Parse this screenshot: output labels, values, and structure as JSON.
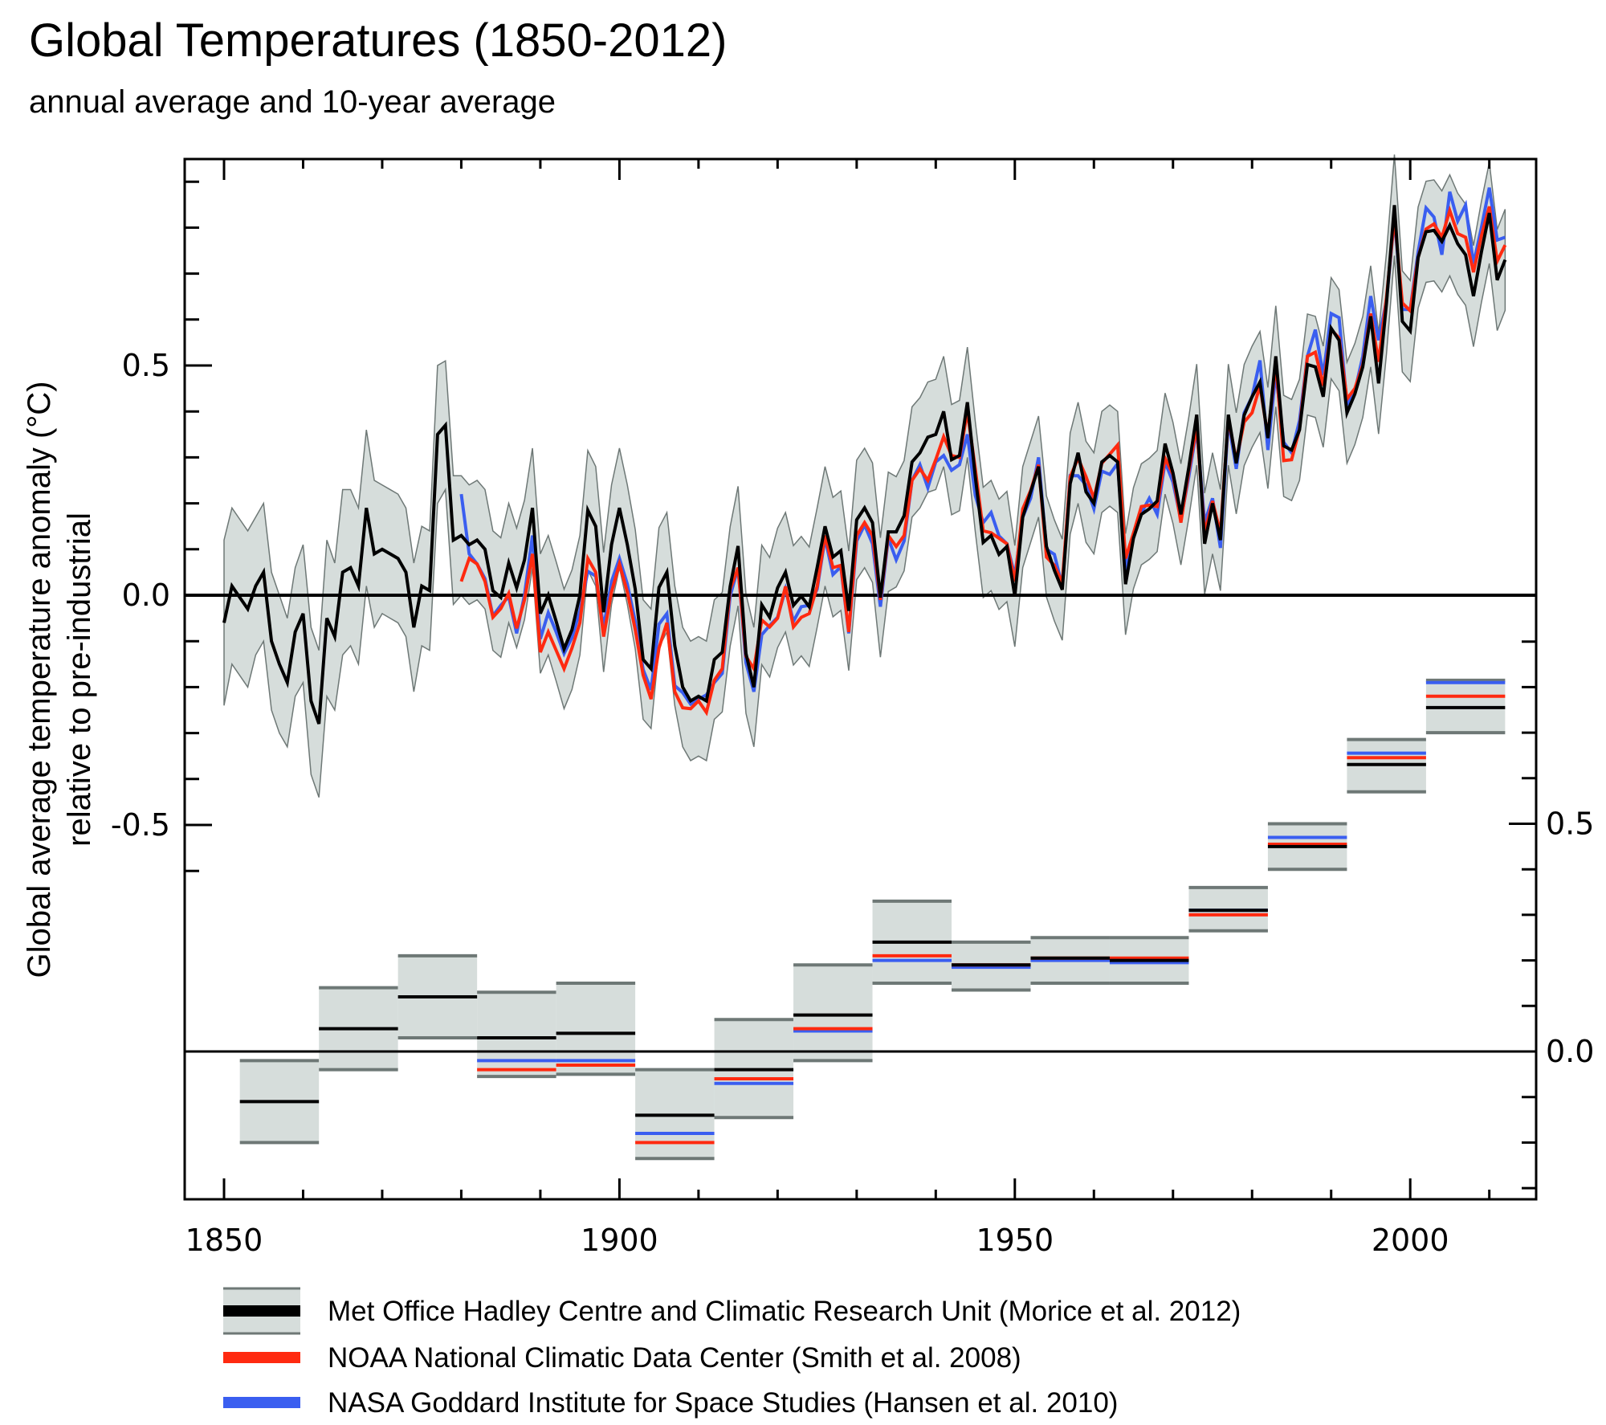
{
  "chart_data": {
    "type": "line",
    "title": "Global Temperatures (1850-2012)",
    "subtitle": "annual average and 10-year average",
    "xlabel": "",
    "ylabel": "Global average temperature anomaly (°C)",
    "ylabel2": "relative to pre-industrial",
    "xlim": [
      1850,
      2012
    ],
    "x_ticks": [
      1850,
      1900,
      1950,
      2000
    ],
    "x_tick_labels": [
      "1850",
      "1900",
      "1950",
      "2000"
    ],
    "annual_panel": {
      "ylim": [
        -0.62,
        0.95
      ],
      "y_ticks": [
        -0.5,
        0.0,
        0.5
      ],
      "y_tick_labels": [
        "-0.5",
        "0.0",
        "0.5"
      ],
      "axis_side": "left"
    },
    "decadal_panel": {
      "ylim": [
        -0.25,
        0.95
      ],
      "y_ticks": [
        0.0,
        0.5
      ],
      "y_tick_labels": [
        "0.0",
        "0.5"
      ],
      "axis_side": "right"
    },
    "colors": {
      "hadcrut": "#000000",
      "noaa": "#ff2a10",
      "nasa": "#3a5ef0",
      "band_fill": "#d6dddb",
      "band_edge": "#6e7876"
    },
    "annual": {
      "start_year": 1850,
      "hadcrut": [
        -0.06,
        0.02,
        -0.005,
        -0.03,
        0.02,
        0.05,
        -0.1,
        -0.15,
        -0.19,
        -0.08,
        -0.04,
        -0.23,
        -0.28,
        -0.05,
        -0.09,
        0.05,
        0.06,
        0.02,
        0.19,
        0.09,
        0.1,
        0.09,
        0.08,
        0.05,
        -0.07,
        0.02,
        0.01,
        0.35,
        0.37,
        0.12,
        0.13,
        0.11,
        0.12,
        0.1,
        0.01,
        -0.005,
        0.07,
        0.016,
        0.077,
        0.19,
        -0.04,
        0.0,
        -0.057,
        -0.117,
        -0.075,
        0.0,
        0.185,
        0.15,
        -0.037,
        0.11,
        0.19,
        0.11,
        0.013,
        -0.14,
        -0.16,
        0.017,
        0.05,
        -0.11,
        -0.2,
        -0.23,
        -0.22,
        -0.23,
        -0.14,
        -0.124,
        0.019,
        0.107,
        -0.127,
        -0.2,
        -0.021,
        -0.048,
        0.016,
        0.05,
        -0.022,
        -0.002,
        -0.025,
        0.06,
        0.15,
        0.083,
        0.097,
        -0.034,
        0.164,
        0.19,
        0.158,
        -0.005,
        0.138,
        0.138,
        0.173,
        0.29,
        0.31,
        0.344,
        0.35,
        0.4,
        0.295,
        0.304,
        0.42,
        0.258,
        0.115,
        0.13,
        0.089,
        0.106,
        -0.002,
        0.17,
        0.225,
        0.28,
        0.106,
        0.054,
        0.012,
        0.243,
        0.31,
        0.225,
        0.2,
        0.29,
        0.304,
        0.29,
        0.024,
        0.124,
        0.176,
        0.188,
        0.205,
        0.33,
        0.266,
        0.176,
        0.278,
        0.393,
        0.112,
        0.2,
        0.12,
        0.393,
        0.287,
        0.392,
        0.432,
        0.464,
        0.342,
        0.52,
        0.325,
        0.316,
        0.36,
        0.502,
        0.497,
        0.432,
        0.581,
        0.555,
        0.397,
        0.438,
        0.497,
        0.607,
        0.461,
        0.636,
        0.849,
        0.596,
        0.575,
        0.735,
        0.791,
        0.794,
        0.77,
        0.805,
        0.765,
        0.741,
        0.651,
        0.747,
        0.832,
        0.686,
        0.73
      ],
      "hadcrut_uncertainty": [
        0.18,
        0.17,
        0.17,
        0.17,
        0.15,
        0.15,
        0.15,
        0.15,
        0.14,
        0.14,
        0.15,
        0.16,
        0.16,
        0.17,
        0.16,
        0.18,
        0.17,
        0.17,
        0.17,
        0.16,
        0.14,
        0.14,
        0.14,
        0.14,
        0.14,
        0.13,
        0.13,
        0.15,
        0.14,
        0.14,
        0.13,
        0.13,
        0.13,
        0.13,
        0.13,
        0.13,
        0.13,
        0.13,
        0.13,
        0.13,
        0.13,
        0.13,
        0.13,
        0.13,
        0.13,
        0.13,
        0.13,
        0.13,
        0.13,
        0.13,
        0.13,
        0.13,
        0.13,
        0.13,
        0.13,
        0.13,
        0.13,
        0.13,
        0.13,
        0.13,
        0.13,
        0.13,
        0.13,
        0.13,
        0.13,
        0.13,
        0.13,
        0.13,
        0.13,
        0.13,
        0.13,
        0.13,
        0.13,
        0.13,
        0.13,
        0.13,
        0.13,
        0.13,
        0.13,
        0.13,
        0.13,
        0.13,
        0.13,
        0.13,
        0.13,
        0.12,
        0.12,
        0.12,
        0.12,
        0.12,
        0.12,
        0.12,
        0.12,
        0.12,
        0.12,
        0.12,
        0.12,
        0.12,
        0.12,
        0.12,
        0.11,
        0.11,
        0.11,
        0.11,
        0.11,
        0.11,
        0.11,
        0.11,
        0.11,
        0.11,
        0.11,
        0.11,
        0.11,
        0.11,
        0.11,
        0.11,
        0.11,
        0.11,
        0.11,
        0.11,
        0.11,
        0.11,
        0.11,
        0.11,
        0.11,
        0.11,
        0.11,
        0.11,
        0.11,
        0.11,
        0.11,
        0.11,
        0.11,
        0.11,
        0.11,
        0.11,
        0.11,
        0.11,
        0.11,
        0.11,
        0.11,
        0.11,
        0.11,
        0.11,
        0.11,
        0.11,
        0.11,
        0.11,
        0.11,
        0.11,
        0.11,
        0.11,
        0.11,
        0.11,
        0.11,
        0.11,
        0.11,
        0.11,
        0.11,
        0.11,
        0.11,
        0.11,
        0.11
      ],
      "noaa_start_year": 1880,
      "noaa": [
        0.03,
        0.08,
        0.068,
        0.03,
        -0.048,
        -0.029,
        0.004,
        -0.072,
        -0.01,
        0.09,
        -0.124,
        -0.08,
        -0.12,
        -0.16,
        -0.115,
        -0.06,
        0.08,
        0.05,
        -0.09,
        0.007,
        0.068,
        0.007,
        -0.075,
        -0.174,
        -0.226,
        -0.115,
        -0.06,
        -0.21,
        -0.245,
        -0.247,
        -0.23,
        -0.255,
        -0.185,
        -0.16,
        0.013,
        0.06,
        -0.133,
        -0.16,
        -0.054,
        -0.069,
        -0.05,
        0.019,
        -0.069,
        -0.048,
        -0.04,
        0.019,
        0.13,
        0.06,
        0.065,
        -0.08,
        0.13,
        0.158,
        0.13,
        -0.01,
        0.13,
        0.106,
        0.13,
        0.25,
        0.275,
        0.25,
        0.295,
        0.345,
        0.304,
        0.3,
        0.4,
        0.275,
        0.14,
        0.136,
        0.124,
        0.112,
        0.03,
        0.188,
        0.228,
        0.284,
        0.083,
        0.065,
        0.027,
        0.258,
        0.298,
        0.258,
        0.211,
        0.287,
        0.307,
        0.327,
        0.08,
        0.135,
        0.193,
        0.196,
        0.193,
        0.298,
        0.263,
        0.158,
        0.27,
        0.368,
        0.135,
        0.205,
        0.135,
        0.386,
        0.293,
        0.377,
        0.397,
        0.456,
        0.345,
        0.508,
        0.293,
        0.295,
        0.362,
        0.52,
        0.529,
        0.456,
        0.578,
        0.56,
        0.427,
        0.45,
        0.502,
        0.613,
        0.508,
        0.648,
        0.823,
        0.636,
        0.619,
        0.735,
        0.797,
        0.808,
        0.779,
        0.837,
        0.787,
        0.779,
        0.703,
        0.782,
        0.846,
        0.727,
        0.762
      ],
      "nasa_start_year": 1880,
      "nasa": [
        0.22,
        0.09,
        0.068,
        0.036,
        -0.045,
        -0.022,
        -0.003,
        -0.083,
        0.001,
        0.13,
        -0.095,
        -0.038,
        -0.08,
        -0.127,
        -0.092,
        -0.034,
        0.052,
        0.042,
        -0.07,
        0.03,
        0.08,
        0.024,
        -0.057,
        -0.162,
        -0.206,
        -0.063,
        -0.04,
        -0.197,
        -0.212,
        -0.237,
        -0.226,
        -0.217,
        -0.19,
        -0.17,
        -0.002,
        0.06,
        -0.147,
        -0.21,
        -0.086,
        -0.066,
        -0.048,
        0.013,
        -0.057,
        -0.025,
        -0.022,
        0.013,
        0.124,
        0.045,
        0.062,
        -0.083,
        0.118,
        0.153,
        0.112,
        -0.025,
        0.124,
        0.077,
        0.118,
        0.25,
        0.284,
        0.234,
        0.29,
        0.304,
        0.272,
        0.284,
        0.35,
        0.217,
        0.158,
        0.18,
        0.129,
        0.112,
        0.042,
        0.17,
        0.211,
        0.3,
        0.1,
        0.089,
        0.019,
        0.26,
        0.26,
        0.24,
        0.188,
        0.27,
        0.263,
        0.287,
        0.054,
        0.135,
        0.179,
        0.211,
        0.176,
        0.29,
        0.246,
        0.164,
        0.258,
        0.362,
        0.158,
        0.211,
        0.103,
        0.38,
        0.275,
        0.397,
        0.432,
        0.511,
        0.316,
        0.485,
        0.333,
        0.31,
        0.38,
        0.52,
        0.578,
        0.479,
        0.613,
        0.604,
        0.415,
        0.444,
        0.52,
        0.651,
        0.555,
        0.642,
        0.82,
        0.622,
        0.622,
        0.747,
        0.843,
        0.823,
        0.741,
        0.878,
        0.814,
        0.849,
        0.721,
        0.8,
        0.887,
        0.773,
        0.779
      ]
    },
    "decadal": [
      {
        "start": 1852,
        "end": 1862,
        "hadcrut": -0.11,
        "low": -0.2,
        "high": -0.02,
        "noaa": null,
        "nasa": null
      },
      {
        "start": 1862,
        "end": 1872,
        "hadcrut": 0.05,
        "low": -0.04,
        "high": 0.14,
        "noaa": null,
        "nasa": null
      },
      {
        "start": 1872,
        "end": 1882,
        "hadcrut": 0.12,
        "low": 0.03,
        "high": 0.21,
        "noaa": null,
        "nasa": null
      },
      {
        "start": 1882,
        "end": 1892,
        "hadcrut": 0.03,
        "low": -0.055,
        "high": 0.13,
        "noaa": -0.04,
        "nasa": -0.02
      },
      {
        "start": 1892,
        "end": 1902,
        "hadcrut": 0.04,
        "low": -0.05,
        "high": 0.15,
        "noaa": -0.03,
        "nasa": -0.02
      },
      {
        "start": 1902,
        "end": 1912,
        "hadcrut": -0.14,
        "low": -0.235,
        "high": -0.04,
        "noaa": -0.2,
        "nasa": -0.18
      },
      {
        "start": 1912,
        "end": 1922,
        "hadcrut": -0.04,
        "low": -0.145,
        "high": 0.07,
        "noaa": -0.06,
        "nasa": -0.07
      },
      {
        "start": 1922,
        "end": 1932,
        "hadcrut": 0.08,
        "low": -0.02,
        "high": 0.19,
        "noaa": 0.05,
        "nasa": 0.045
      },
      {
        "start": 1932,
        "end": 1942,
        "hadcrut": 0.24,
        "low": 0.15,
        "high": 0.33,
        "noaa": 0.21,
        "nasa": 0.2
      },
      {
        "start": 1942,
        "end": 1952,
        "hadcrut": 0.19,
        "low": 0.135,
        "high": 0.24,
        "noaa": 0.19,
        "nasa": 0.185
      },
      {
        "start": 1952,
        "end": 1962,
        "hadcrut": 0.205,
        "low": 0.15,
        "high": 0.25,
        "noaa": 0.205,
        "nasa": 0.2
      },
      {
        "start": 1962,
        "end": 1972,
        "hadcrut": 0.2,
        "low": 0.15,
        "high": 0.25,
        "noaa": 0.205,
        "nasa": 0.195
      },
      {
        "start": 1972,
        "end": 1982,
        "hadcrut": 0.31,
        "low": 0.265,
        "high": 0.36,
        "noaa": 0.3,
        "nasa": 0.31
      },
      {
        "start": 1982,
        "end": 1992,
        "hadcrut": 0.45,
        "low": 0.4,
        "high": 0.5,
        "noaa": 0.455,
        "nasa": 0.47
      },
      {
        "start": 1992,
        "end": 2002,
        "hadcrut": 0.63,
        "low": 0.57,
        "high": 0.685,
        "noaa": 0.645,
        "nasa": 0.655
      },
      {
        "start": 2002,
        "end": 2012,
        "hadcrut": 0.755,
        "low": 0.7,
        "high": 0.815,
        "noaa": 0.78,
        "nasa": 0.81
      }
    ],
    "legend": {
      "placement": "bottom",
      "entries": [
        {
          "key": "hadcrut",
          "label": "Met Office Hadley Centre and Climatic Research Unit (Morice et al. 2012)"
        },
        {
          "key": "noaa",
          "label": "NOAA National Climatic Data Center (Smith et al. 2008)"
        },
        {
          "key": "nasa",
          "label": "NASA Goddard Institute for Space Studies (Hansen et al. 2010)"
        }
      ]
    },
    "grid": false
  }
}
